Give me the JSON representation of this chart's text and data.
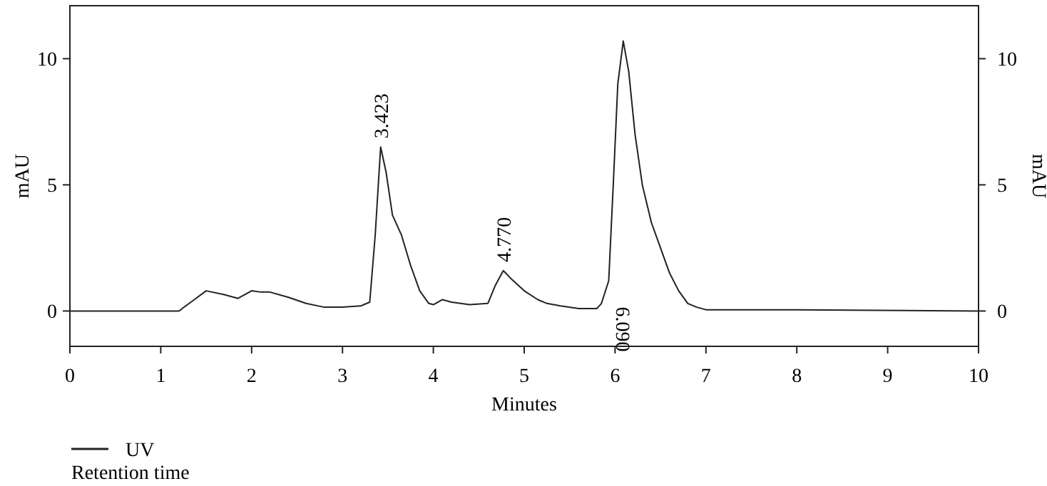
{
  "chart_data": {
    "type": "line",
    "xlabel": "Minutes",
    "ylabel": "mAU",
    "y2label": "mAU",
    "xlim": [
      0,
      10
    ],
    "xticks": [
      0,
      1,
      2,
      3,
      4,
      5,
      6,
      7,
      8,
      9,
      10
    ],
    "ylim": [
      -1.4,
      12.1
    ],
    "yticks": [
      0,
      5,
      10
    ],
    "y2lim": [
      -1.4,
      12.1
    ],
    "y2ticks": [
      0,
      5,
      10
    ],
    "legend": "bottom left",
    "grid": false,
    "line_style": "solid",
    "marker": "none",
    "series": [
      {
        "name": "UV",
        "color": "#222222",
        "x": [
          0,
          1.2,
          1.35,
          1.5,
          1.7,
          1.85,
          2.0,
          2.1,
          2.2,
          2.4,
          2.6,
          2.8,
          3.0,
          3.2,
          3.3,
          3.36,
          3.42,
          3.48,
          3.55,
          3.65,
          3.75,
          3.85,
          3.95,
          4.0,
          4.1,
          4.2,
          4.4,
          4.6,
          4.68,
          4.77,
          4.85,
          5.0,
          5.15,
          5.25,
          5.4,
          5.6,
          5.8,
          5.85,
          5.93,
          5.98,
          6.03,
          6.09,
          6.15,
          6.22,
          6.3,
          6.4,
          6.5,
          6.6,
          6.7,
          6.8,
          6.9,
          7.0,
          8.0,
          10.0
        ],
        "values": [
          0,
          0,
          0.4,
          0.8,
          0.65,
          0.5,
          0.8,
          0.75,
          0.75,
          0.55,
          0.3,
          0.15,
          0.15,
          0.2,
          0.35,
          3,
          6.5,
          5.5,
          3.8,
          3.0,
          1.8,
          0.8,
          0.3,
          0.25,
          0.45,
          0.35,
          0.25,
          0.3,
          1.0,
          1.6,
          1.3,
          0.8,
          0.45,
          0.3,
          0.2,
          0.1,
          0.1,
          0.3,
          1.2,
          5,
          9,
          10.7,
          9.5,
          7,
          5,
          3.5,
          2.5,
          1.5,
          0.8,
          0.3,
          0.15,
          0.05,
          0.05,
          0
        ]
      }
    ],
    "annotations": [
      {
        "text": "3.423",
        "x": 3.423,
        "y": 6.5
      },
      {
        "text": "4.770",
        "x": 4.77,
        "y": 1.6
      },
      "6.090",
      "Retention time"
    ]
  }
}
